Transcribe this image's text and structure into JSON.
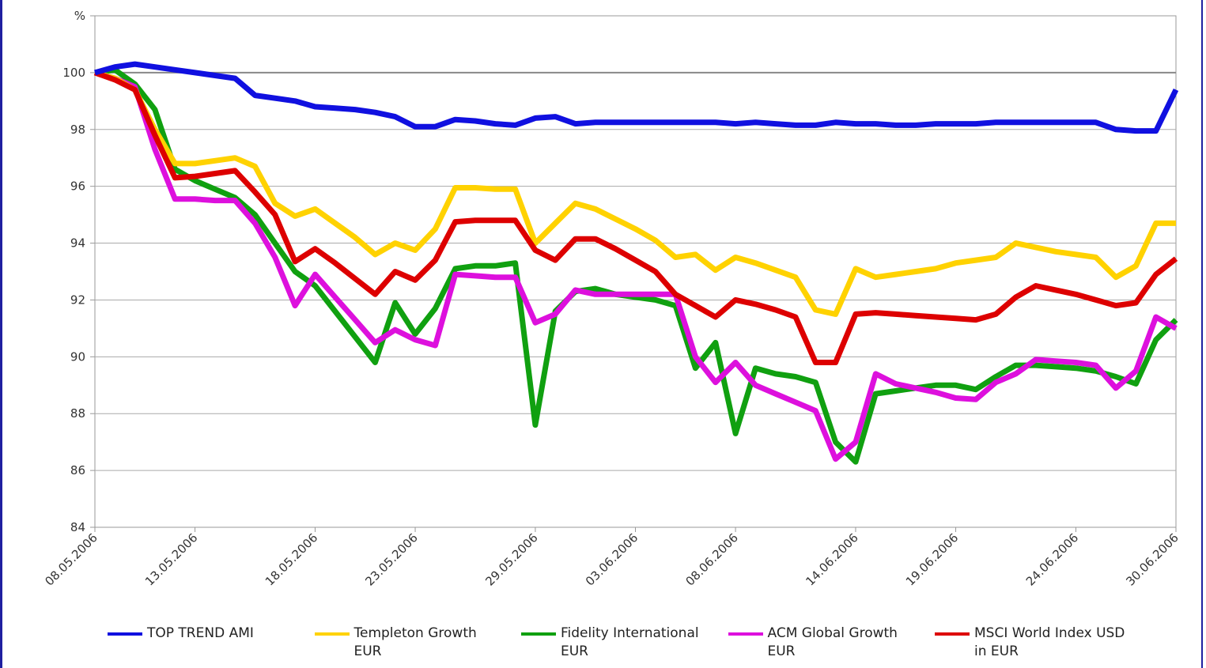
{
  "chart_data": {
    "type": "line",
    "categories": [
      "08.05.2006",
      null,
      null,
      null,
      null,
      "13.05.2006",
      null,
      null,
      null,
      null,
      null,
      "18.05.2006",
      null,
      null,
      null,
      null,
      "23.05.2006",
      null,
      null,
      null,
      null,
      null,
      "29.05.2006",
      null,
      null,
      null,
      null,
      "03.06.2006",
      null,
      null,
      null,
      null,
      "08.06.2006",
      null,
      null,
      null,
      null,
      null,
      "14.06.2006",
      null,
      null,
      null,
      null,
      "19.06.2006",
      null,
      null,
      null,
      null,
      null,
      "24.06.2006",
      null,
      null,
      null,
      null,
      "30.06.2006"
    ],
    "ylim": [
      84,
      102
    ],
    "yticks": [
      84,
      86,
      88,
      90,
      92,
      94,
      96,
      98,
      100,
      {
        "value": 102,
        "label": "%"
      }
    ],
    "grid": true,
    "legend": "bottom",
    "series": [
      {
        "name": "Fidelity International EUR",
        "color": "#10a010",
        "values": [
          100,
          100.1,
          99.6,
          98.7,
          96.6,
          96.2,
          95.9,
          95.6,
          95.0,
          94.0,
          93.0,
          92.5,
          91.6,
          90.7,
          89.8,
          91.9,
          90.8,
          91.7,
          93.1,
          93.2,
          93.2,
          93.3,
          87.6,
          91.6,
          92.3,
          92.4,
          92.2,
          92.1,
          92.0,
          91.8,
          89.6,
          90.5,
          87.3,
          89.6,
          89.4,
          89.3,
          89.1,
          87.0,
          86.3,
          88.7,
          88.8,
          88.9,
          89.0,
          89.0,
          88.85,
          89.3,
          89.7,
          89.7,
          89.65,
          89.6,
          89.5,
          89.3,
          89.05,
          90.6,
          91.3
        ]
      },
      {
        "name": "ACM Global Growth EUR",
        "color": "#dd10dd",
        "values": [
          100,
          99.8,
          99.5,
          97.3,
          95.55,
          95.55,
          95.5,
          95.5,
          94.7,
          93.5,
          91.8,
          92.9,
          92.1,
          91.3,
          90.5,
          90.95,
          90.6,
          90.4,
          92.9,
          92.85,
          92.8,
          92.8,
          91.2,
          91.5,
          92.35,
          92.2,
          92.2,
          92.2,
          92.2,
          92.2,
          90.0,
          89.1,
          89.8,
          89.0,
          88.7,
          88.4,
          88.1,
          86.4,
          87.0,
          89.4,
          89.05,
          88.9,
          88.75,
          88.55,
          88.5,
          89.1,
          89.4,
          89.9,
          89.85,
          89.8,
          89.7,
          88.9,
          89.5,
          91.4,
          91.0
        ]
      },
      {
        "name": "Templeton Growth EUR",
        "color": "#ffd200",
        "values": [
          100,
          99.8,
          99.4,
          98.0,
          96.8,
          96.8,
          96.9,
          97.0,
          96.7,
          95.4,
          94.95,
          95.2,
          94.7,
          94.2,
          93.6,
          94.0,
          93.75,
          94.5,
          95.95,
          95.95,
          95.9,
          95.9,
          94.0,
          94.7,
          95.4,
          95.2,
          94.85,
          94.5,
          94.1,
          93.5,
          93.6,
          93.05,
          93.5,
          93.3,
          93.05,
          92.8,
          91.65,
          91.5,
          93.1,
          92.8,
          92.9,
          93.0,
          93.1,
          93.3,
          93.4,
          93.5,
          94.0,
          93.85,
          93.7,
          93.6,
          93.5,
          92.8,
          93.2,
          94.7,
          94.7
        ]
      },
      {
        "name": "MSCI World Index USD in EUR",
        "color": "#dd0000",
        "values": [
          100,
          99.75,
          99.4,
          97.8,
          96.3,
          96.35,
          96.45,
          96.55,
          95.8,
          95.0,
          93.35,
          93.8,
          93.3,
          92.75,
          92.2,
          93.0,
          92.7,
          93.4,
          94.75,
          94.8,
          94.8,
          94.8,
          93.75,
          93.4,
          94.15,
          94.15,
          93.8,
          93.4,
          93.0,
          92.2,
          91.8,
          91.4,
          92.0,
          91.85,
          91.65,
          91.4,
          89.8,
          89.8,
          91.5,
          91.55,
          91.5,
          91.45,
          91.4,
          91.35,
          91.3,
          91.5,
          92.1,
          92.5,
          92.35,
          92.2,
          92.0,
          91.8,
          91.9,
          92.9,
          93.45
        ]
      },
      {
        "name": "TOP TREND AMI",
        "color": "#1010e0",
        "values": [
          100,
          100.2,
          100.3,
          100.2,
          100.1,
          100.0,
          99.9,
          99.8,
          99.2,
          99.1,
          99.0,
          98.8,
          98.75,
          98.7,
          98.6,
          98.45,
          98.1,
          98.1,
          98.35,
          98.3,
          98.2,
          98.15,
          98.4,
          98.45,
          98.2,
          98.25,
          98.25,
          98.25,
          98.25,
          98.25,
          98.25,
          98.25,
          98.2,
          98.25,
          98.2,
          98.15,
          98.15,
          98.25,
          98.2,
          98.2,
          98.15,
          98.15,
          98.2,
          98.2,
          98.2,
          98.25,
          98.25,
          98.25,
          98.25,
          98.25,
          98.25,
          98.0,
          97.95,
          97.95,
          99.4
        ]
      }
    ]
  }
}
